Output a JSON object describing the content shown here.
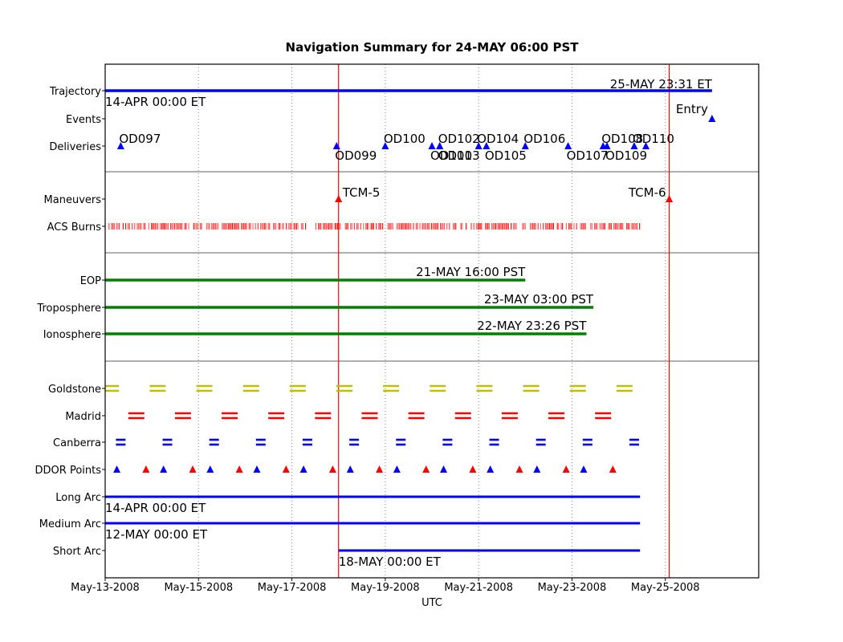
{
  "chart_data": {
    "type": "timeline",
    "title": "Navigation Summary for 24-MAY 06:00 PST",
    "xlabel": "UTC",
    "x_range": [
      "2008-05-13",
      "2008-05-27"
    ],
    "x_ticks": [
      "2008-05-13",
      "2008-05-15",
      "2008-05-17",
      "2008-05-19",
      "2008-05-21",
      "2008-05-23",
      "2008-05-25"
    ],
    "x_tick_labels": [
      "May-13-2008",
      "May-15-2008",
      "May-17-2008",
      "May-19-2008",
      "May-21-2008",
      "May-23-2008",
      "May-25-2008"
    ],
    "grid": "vertical dotted",
    "colors": {
      "blue": "#0000ff",
      "red": "#ff0000",
      "green": "#008000",
      "olive": "#bfbf00",
      "sep": "#808080"
    },
    "rows": [
      "Trajectory",
      "Events",
      "Deliveries",
      "Maneuvers",
      "ACS Burns",
      "EOP",
      "Troposphere",
      "Ionosphere",
      "Goldstone",
      "Madrid",
      "Canberra",
      "DDOR Points",
      "Long Arc",
      "Medium Arc",
      "Short Arc"
    ],
    "current_time_lines": [
      "2008-05-18 00:00",
      "2008-05-25 02:00"
    ],
    "trajectory": {
      "start": "2008-05-13 00:00",
      "end": "2008-05-26 00:00",
      "start_label": "14-APR 00:00 ET",
      "end_label": "25-MAY 23:31 ET"
    },
    "events": [
      {
        "t": "2008-05-26 00:00",
        "label": "Entry"
      }
    ],
    "deliveries": [
      {
        "t": "2008-05-13 08:00",
        "label": "OD097",
        "pos": "above"
      },
      {
        "t": "2008-05-17 23:00",
        "label": "OD099",
        "pos": "below"
      },
      {
        "t": "2008-05-19 00:00",
        "label": "OD100",
        "pos": "above"
      },
      {
        "t": "2008-05-20 00:00",
        "label": "OD101",
        "pos": "below"
      },
      {
        "t": "2008-05-20 04:00",
        "label": "OD102",
        "pos": "above"
      },
      {
        "t": "2008-05-20 04:00",
        "label": "OD103",
        "pos": "below"
      },
      {
        "t": "2008-05-21 00:00",
        "label": "OD104",
        "pos": "above"
      },
      {
        "t": "2008-05-21 04:00",
        "label": "OD105",
        "pos": "below"
      },
      {
        "t": "2008-05-22 00:00",
        "label": "OD106",
        "pos": "above"
      },
      {
        "t": "2008-05-22 22:00",
        "label": "OD107",
        "pos": "below"
      },
      {
        "t": "2008-05-23 16:00",
        "label": "OD108",
        "pos": "above"
      },
      {
        "t": "2008-05-23 18:00",
        "label": "OD109",
        "pos": "below"
      },
      {
        "t": "2008-05-24 08:00",
        "label": "OD110",
        "pos": "above"
      },
      {
        "t": "2008-05-24 14:00",
        "label": "",
        "pos": "above"
      }
    ],
    "maneuvers": [
      {
        "t": "2008-05-18 00:00",
        "label": "TCM-5"
      },
      {
        "t": "2008-05-25 02:00",
        "label": "TCM-6"
      }
    ],
    "acs_burns": {
      "start": "2008-05-13 00:00",
      "end": "2008-05-24 11:00",
      "gaps": [
        [
          "2008-05-17 06:00",
          "2008-05-17 12:00"
        ]
      ]
    },
    "solutions": [
      {
        "row": "EOP",
        "start": "2008-05-13 00:00",
        "end": "2008-05-22 00:00",
        "label": "21-MAY 16:00 PST"
      },
      {
        "row": "Troposphere",
        "start": "2008-05-13 00:00",
        "end": "2008-05-23 11:00",
        "label": "23-MAY 03:00 PST"
      },
      {
        "row": "Ionosphere",
        "start": "2008-05-13 00:00",
        "end": "2008-05-23 07:26",
        "label": "22-MAY 23:26 PST"
      }
    ],
    "tracks": [
      {
        "row": "Goldstone",
        "color": "olive",
        "centers": [
          "2008-05-13 03:00",
          "2008-05-14 03:00",
          "2008-05-15 03:00",
          "2008-05-16 03:00",
          "2008-05-17 03:00",
          "2008-05-18 03:00",
          "2008-05-19 03:00",
          "2008-05-20 03:00",
          "2008-05-21 03:00",
          "2008-05-22 03:00",
          "2008-05-23 03:00",
          "2008-05-24 03:00"
        ]
      },
      {
        "row": "Madrid",
        "color": "red",
        "centers": [
          "2008-05-13 16:00",
          "2008-05-14 16:00",
          "2008-05-15 16:00",
          "2008-05-16 16:00",
          "2008-05-17 16:00",
          "2008-05-18 16:00",
          "2008-05-19 16:00",
          "2008-05-20 16:00",
          "2008-05-21 16:00",
          "2008-05-22 16:00",
          "2008-05-23 16:00"
        ]
      },
      {
        "row": "Canberra",
        "color": "blue",
        "centers": [
          "2008-05-13 08:00",
          "2008-05-14 08:00",
          "2008-05-15 08:00",
          "2008-05-16 08:00",
          "2008-05-17 08:00",
          "2008-05-18 08:00",
          "2008-05-19 08:00",
          "2008-05-20 08:00",
          "2008-05-21 08:00",
          "2008-05-22 08:00",
          "2008-05-23 08:00",
          "2008-05-24 08:00"
        ]
      }
    ],
    "ddor_points": [
      {
        "t": "2008-05-13 06:00",
        "c": "blue"
      },
      {
        "t": "2008-05-13 21:00",
        "c": "red"
      },
      {
        "t": "2008-05-14 06:00",
        "c": "blue"
      },
      {
        "t": "2008-05-14 21:00",
        "c": "red"
      },
      {
        "t": "2008-05-15 06:00",
        "c": "blue"
      },
      {
        "t": "2008-05-15 21:00",
        "c": "red"
      },
      {
        "t": "2008-05-16 06:00",
        "c": "blue"
      },
      {
        "t": "2008-05-16 21:00",
        "c": "red"
      },
      {
        "t": "2008-05-17 06:00",
        "c": "blue"
      },
      {
        "t": "2008-05-17 21:00",
        "c": "red"
      },
      {
        "t": "2008-05-18 06:00",
        "c": "blue"
      },
      {
        "t": "2008-05-18 21:00",
        "c": "red"
      },
      {
        "t": "2008-05-19 06:00",
        "c": "blue"
      },
      {
        "t": "2008-05-19 21:00",
        "c": "red"
      },
      {
        "t": "2008-05-20 06:00",
        "c": "blue"
      },
      {
        "t": "2008-05-20 21:00",
        "c": "red"
      },
      {
        "t": "2008-05-21 06:00",
        "c": "blue"
      },
      {
        "t": "2008-05-21 21:00",
        "c": "red"
      },
      {
        "t": "2008-05-22 06:00",
        "c": "blue"
      },
      {
        "t": "2008-05-22 21:00",
        "c": "red"
      },
      {
        "t": "2008-05-23 06:00",
        "c": "blue"
      },
      {
        "t": "2008-05-23 21:00",
        "c": "red"
      }
    ],
    "arcs": [
      {
        "row": "Long Arc",
        "start": "2008-05-13 00:00",
        "end": "2008-05-24 11:00",
        "label": "14-APR 00:00 ET"
      },
      {
        "row": "Medium Arc",
        "start": "2008-05-13 00:00",
        "end": "2008-05-24 11:00",
        "label": "12-MAY 00:00 ET"
      },
      {
        "row": "Short Arc",
        "start": "2008-05-18 00:00",
        "end": "2008-05-24 11:00",
        "label": "18-MAY 00:00 ET"
      }
    ]
  }
}
